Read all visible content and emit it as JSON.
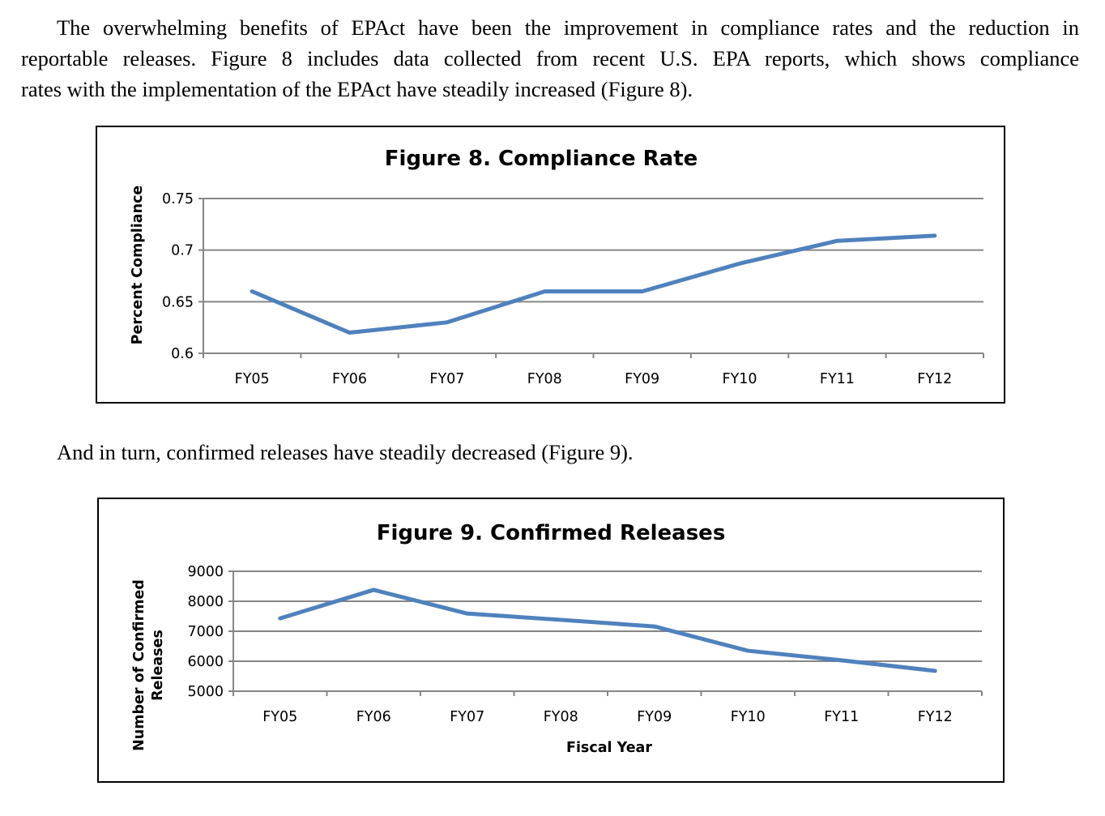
{
  "document": {
    "paragraph1_lines": [
      "The overwhelming benefits of EPAct have been the improvement in compliance rates and the reduction in",
      "reportable releases. Figure 8 includes data collected from recent U.S. EPA reports, which shows compliance",
      "rates with the implementation of the EPAct have steadily increased (Figure 8)."
    ],
    "paragraph2": "And in turn, confirmed releases have steadily decreased (Figure 9)."
  },
  "chart_data": [
    {
      "type": "line",
      "title": "Figure 8. Compliance Rate",
      "xlabel": "",
      "ylabel": "Percent Compliance",
      "categories": [
        "FY05",
        "FY06",
        "FY07",
        "FY08",
        "FY09",
        "FY10",
        "FY11",
        "FY12"
      ],
      "series": [
        {
          "name": "Compliance Rate",
          "color": "#4f81bd",
          "values": [
            0.66,
            0.62,
            0.63,
            0.66,
            0.66,
            0.687,
            0.709,
            0.714
          ]
        }
      ],
      "ylim": [
        0.6,
        0.75
      ],
      "yticks": [
        0.6,
        0.65,
        0.7,
        0.75
      ],
      "ytick_labels": [
        "0.6",
        "0.65",
        "0.7",
        "0.75"
      ],
      "grid": true,
      "legend": "none"
    },
    {
      "type": "line",
      "title": "Figure 9. Confirmed Releases",
      "xlabel": "Fiscal Year",
      "ylabel": [
        "Number of Confirmed",
        "Releases"
      ],
      "categories": [
        "FY05",
        "FY06",
        "FY07",
        "FY08",
        "FY09",
        "FY10",
        "FY11",
        "FY12"
      ],
      "series": [
        {
          "name": "Confirmed Releases",
          "color": "#4f81bd",
          "values": [
            7430,
            8380,
            7590,
            7380,
            7160,
            6350,
            6030,
            5680
          ]
        }
      ],
      "ylim": [
        5000,
        9000
      ],
      "yticks": [
        5000,
        6000,
        7000,
        8000,
        9000
      ],
      "ytick_labels": [
        "5000",
        "6000",
        "7000",
        "8000",
        "9000"
      ],
      "grid": true,
      "legend": "none"
    }
  ]
}
